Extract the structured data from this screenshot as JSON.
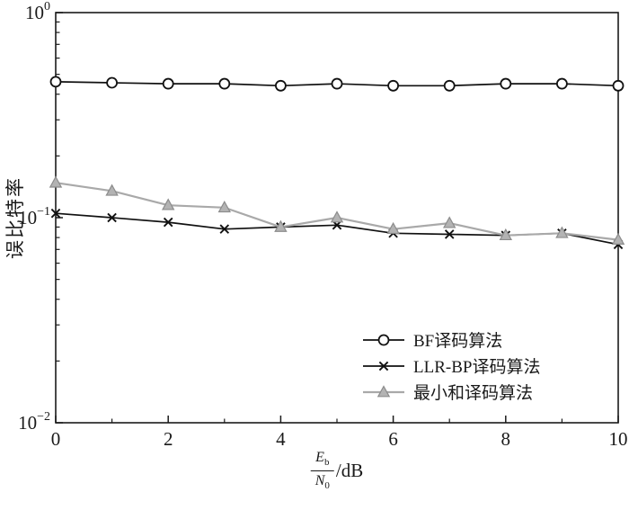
{
  "figure": {
    "background": "#ffffff",
    "axis_color": "#1a1a1a"
  },
  "chart_data": {
    "type": "line",
    "title": "",
    "ylabel": "误比特率",
    "xlabel": "Eb/N0 /dB",
    "xlabel_parts": {
      "num_main": "E",
      "num_sub": "b",
      "den_main": "N",
      "den_sub": "0",
      "unit": "/dB"
    },
    "x": [
      0,
      1,
      2,
      3,
      4,
      5,
      6,
      7,
      8,
      9,
      10
    ],
    "xlim": [
      0,
      10
    ],
    "ylim_exp": [
      0,
      -2
    ],
    "x_major_ticks": [
      0,
      2,
      4,
      6,
      8,
      10
    ],
    "x_minor_ticks": [
      1,
      3,
      5,
      7,
      9
    ],
    "y_tick_exponents": [
      0,
      -1,
      -2
    ],
    "grid": false,
    "legend_position": "lower right",
    "series": [
      {
        "name": "BF译码算法",
        "marker": "circle",
        "color": "#111111",
        "fill": "#ffffff",
        "line_width": 1.7,
        "values": [
          0.46,
          0.455,
          0.45,
          0.45,
          0.44,
          0.45,
          0.44,
          0.44,
          0.45,
          0.45,
          0.44
        ]
      },
      {
        "name": "LLR-BP译码算法",
        "marker": "x",
        "color": "#111111",
        "line_width": 1.7,
        "values": [
          0.105,
          0.1,
          0.095,
          0.088,
          0.09,
          0.092,
          0.084,
          0.083,
          0.082,
          0.084,
          0.074
        ]
      },
      {
        "name": "最小和译码算法",
        "marker": "triangle",
        "color": "#a9a9a9",
        "fill": "#b3b3b3",
        "edge": "#8c8c8c",
        "line_width": 2.2,
        "values": [
          0.148,
          0.135,
          0.115,
          0.112,
          0.09,
          0.1,
          0.088,
          0.094,
          0.082,
          0.084,
          0.078
        ]
      }
    ]
  }
}
